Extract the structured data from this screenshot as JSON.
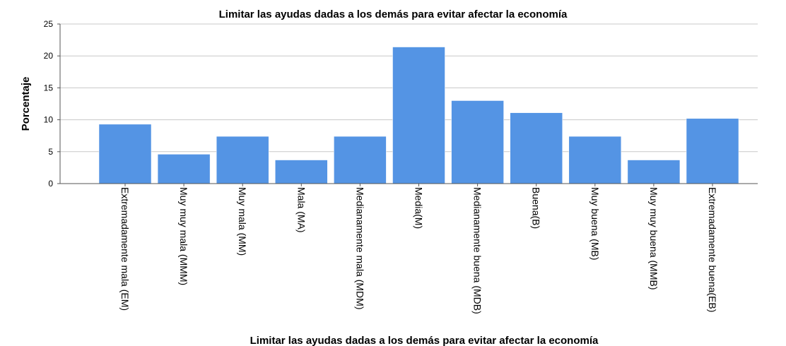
{
  "chart_data": {
    "type": "bar",
    "title": "Limitar las ayudas dadas a los demás para evitar afectar la economía",
    "xlabel": "Limitar las ayudas dadas a los demás para evitar afectar la economía",
    "ylabel": "Porcentaje",
    "ylim": [
      0,
      25
    ],
    "yticks": [
      "0",
      "5",
      "10",
      "15",
      "20",
      "25"
    ],
    "grid": true,
    "legend": "none",
    "bar_color": "#5494e4",
    "categories": [
      "Extremadamente mala (EM)",
      "Muy muy mala (MMM)",
      "Muy mala (MM)",
      "Mala (MA)",
      "Medianamente mala (MDM)",
      "Media(M)",
      "Medianamente buena (MDB)",
      "Buena(B)",
      "Muy buena (MB)",
      "Muy muy buena (MMB)",
      "Extremadamente buena(EB)"
    ],
    "values": [
      9.3,
      4.6,
      7.4,
      3.7,
      7.4,
      21.4,
      13.0,
      11.1,
      7.4,
      3.7,
      10.2
    ]
  }
}
